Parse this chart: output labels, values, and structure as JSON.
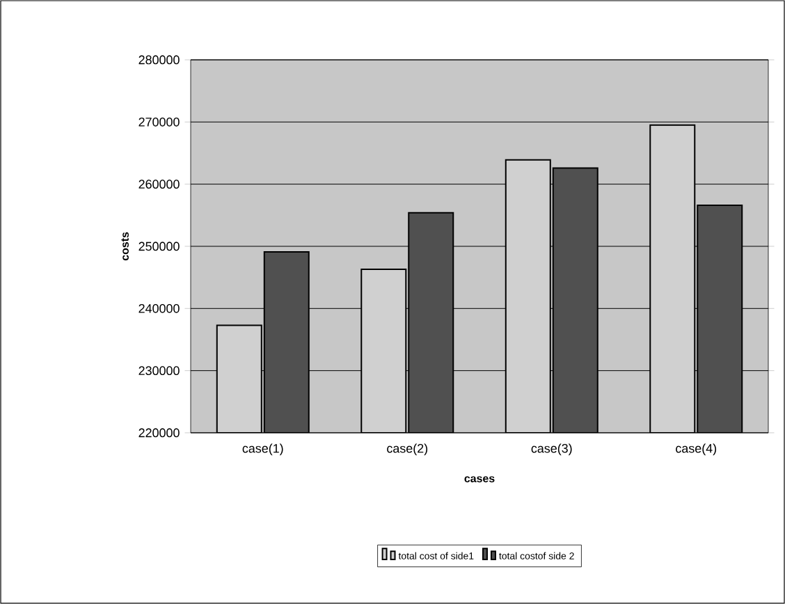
{
  "chart_data": {
    "type": "bar",
    "xlabel": "cases",
    "ylabel": "costs",
    "categories": [
      "case(1)",
      "case(2)",
      "case(3)",
      "case(4)"
    ],
    "series": [
      {
        "name": "total cost of side1",
        "color": "#d0d0d0",
        "values": [
          237300,
          246300,
          263900,
          269500
        ]
      },
      {
        "name": "total costof side 2",
        "color": "#505050",
        "values": [
          249100,
          255400,
          262600,
          256600
        ]
      }
    ],
    "ylim": [
      220000,
      280000
    ],
    "yticks": [
      220000,
      230000,
      240000,
      250000,
      260000,
      270000,
      280000
    ],
    "grid": "y",
    "legend": "bottom"
  }
}
